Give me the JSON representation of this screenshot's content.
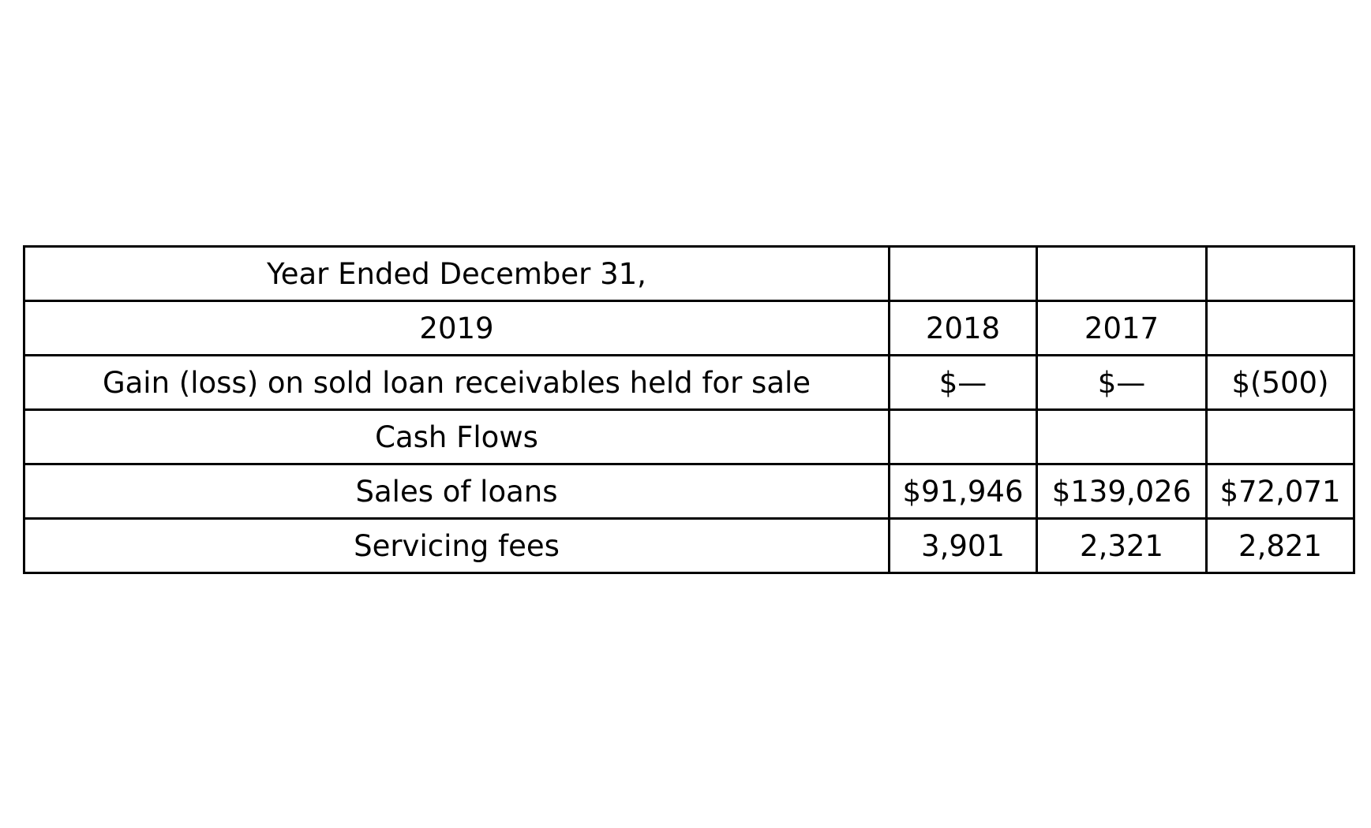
{
  "table": {
    "rows": [
      [
        "Year Ended December 31,",
        "",
        "",
        ""
      ],
      [
        "2019",
        "2018",
        "2017",
        ""
      ],
      [
        "Gain (loss) on sold loan receivables held for sale",
        "$—",
        "$—",
        "$(500)"
      ],
      [
        "Cash Flows",
        "",
        "",
        ""
      ],
      [
        "Sales of loans",
        "$91,946",
        "$139,026",
        "$72,071"
      ],
      [
        "Servicing fees",
        "3,901",
        "2,321",
        "2,821"
      ]
    ]
  }
}
